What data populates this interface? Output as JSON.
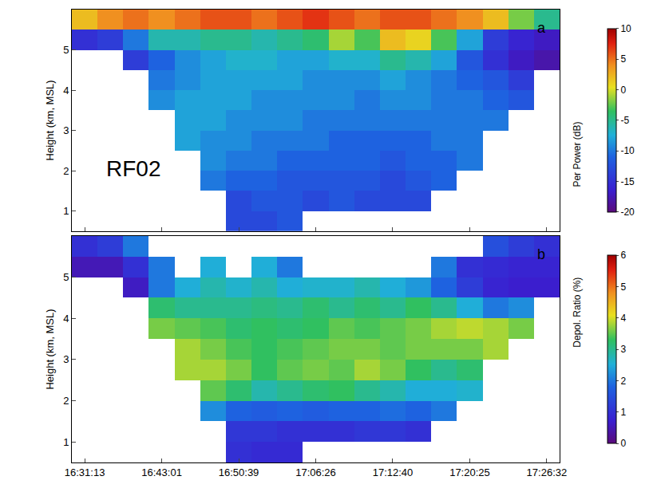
{
  "chart_data": [
    {
      "type": "heatmap",
      "label": "a",
      "annotation": "RF02",
      "tick_labels": "y",
      "categories": [
        "16:31:13",
        null,
        null,
        "16:43:01",
        null,
        null,
        "16:50:39",
        null,
        null,
        "17:06:26",
        null,
        null,
        "17:12:40",
        null,
        null,
        "17:20:25",
        null,
        null,
        "17:26:32"
      ],
      "y": [
        0.75,
        1.25,
        1.75,
        2.25,
        2.75,
        3.25,
        3.75,
        4.25,
        4.75,
        5.25,
        5.75
      ],
      "ylabel": "Height (km, MSL)",
      "ylim": [
        0.5,
        6.0
      ],
      "yticks": [
        1,
        2,
        3,
        4,
        5
      ],
      "z": [
        [
          null,
          null,
          null,
          null,
          null,
          null,
          -13,
          -13,
          -12,
          null,
          null,
          null,
          null,
          null,
          null,
          null,
          null,
          null,
          null
        ],
        [
          null,
          null,
          null,
          null,
          null,
          null,
          -13,
          -12,
          -12,
          -13,
          -12,
          -13,
          -13,
          -13,
          null,
          null,
          null,
          null,
          null
        ],
        [
          null,
          null,
          null,
          null,
          null,
          -10,
          -11,
          -11,
          -12,
          -12,
          -12,
          -12,
          -13,
          -12,
          -11,
          null,
          null,
          null,
          null
        ],
        [
          null,
          null,
          null,
          null,
          null,
          -9,
          -10,
          -10,
          -11,
          -11,
          -11,
          -11,
          -12,
          -11,
          -11,
          -10,
          null,
          null,
          null
        ],
        [
          null,
          null,
          null,
          null,
          -8,
          -9,
          -9,
          -10,
          -10,
          -10,
          -11,
          -11,
          -11,
          -11,
          -10,
          -10,
          null,
          null,
          null
        ],
        [
          null,
          null,
          null,
          null,
          -8,
          -8,
          -9,
          -9,
          -9,
          -10,
          -10,
          -10,
          -10,
          -10,
          -10,
          -10,
          -10,
          null,
          null
        ],
        [
          null,
          null,
          null,
          -9,
          -8,
          -8,
          -8,
          -9,
          -9,
          -9,
          -9,
          -10,
          -9,
          -9,
          -10,
          -10,
          -11,
          -12,
          null
        ],
        [
          null,
          null,
          null,
          -10,
          -9,
          -8,
          -8,
          -8,
          -8,
          -9,
          -9,
          -9,
          -8,
          -9,
          -10,
          -11,
          -12,
          -14,
          null
        ],
        [
          null,
          null,
          -14,
          -11,
          -9,
          -8,
          -7,
          -7,
          -8,
          -8,
          -7,
          -7,
          -5,
          -6,
          -8,
          -12,
          -15,
          -17,
          -18
        ],
        [
          -15,
          -14,
          -10,
          -6,
          -6,
          -5,
          -5,
          -6,
          -5,
          -4,
          -1,
          -3,
          2,
          1,
          -3,
          -8,
          -14,
          -16,
          -17
        ],
        [
          2,
          4,
          5,
          4,
          5,
          6,
          6,
          5,
          6,
          7,
          6,
          5,
          6,
          6,
          5,
          4,
          2,
          -2,
          -5
        ]
      ],
      "colorbar": {
        "title": "Per Power (dB)",
        "range": [
          -20,
          10
        ],
        "ticks": [
          -20,
          -15,
          -10,
          -5,
          0,
          5,
          10
        ]
      }
    },
    {
      "type": "heatmap",
      "label": "b",
      "categories": [
        "16:31:13",
        null,
        null,
        "16:43:01",
        null,
        null,
        "16:50:39",
        null,
        null,
        "17:06:26",
        null,
        null,
        "17:12:40",
        null,
        null,
        "17:20:25",
        null,
        null,
        "17:26:32"
      ],
      "y": [
        0.75,
        1.25,
        1.75,
        2.25,
        2.75,
        3.25,
        3.75,
        4.25,
        4.75,
        5.25,
        5.75
      ],
      "ylabel": "Height (km, MSL)",
      "ylim": [
        0.5,
        6.0
      ],
      "yticks": [
        1,
        2,
        3,
        4,
        5
      ],
      "z": [
        [
          null,
          null,
          null,
          null,
          null,
          null,
          1.0,
          0.9,
          0.9,
          null,
          null,
          null,
          null,
          null,
          null,
          null,
          null,
          null,
          null
        ],
        [
          null,
          null,
          null,
          null,
          null,
          null,
          1.1,
          1.1,
          1.0,
          1.0,
          1.0,
          1.1,
          1.1,
          1.0,
          null,
          null,
          null,
          null,
          null
        ],
        [
          null,
          null,
          null,
          null,
          null,
          2.2,
          1.8,
          1.7,
          1.8,
          1.7,
          1.8,
          1.8,
          1.9,
          1.8,
          2.0,
          null,
          null,
          null,
          null
        ],
        [
          null,
          null,
          null,
          null,
          null,
          3.5,
          3.2,
          2.8,
          3.0,
          3.2,
          3.3,
          3.0,
          2.8,
          2.5,
          2.5,
          2.6,
          null,
          null,
          null
        ],
        [
          null,
          null,
          null,
          null,
          3.8,
          3.8,
          3.6,
          3.3,
          3.5,
          3.6,
          3.5,
          3.8,
          3.6,
          3.3,
          3.0,
          3.2,
          null,
          null,
          null
        ],
        [
          null,
          null,
          null,
          null,
          3.8,
          3.6,
          3.4,
          3.3,
          3.4,
          3.5,
          3.6,
          3.6,
          3.5,
          3.6,
          3.6,
          3.6,
          3.8,
          null,
          null
        ],
        [
          null,
          null,
          null,
          3.6,
          3.5,
          3.4,
          3.2,
          3.3,
          3.2,
          3.3,
          3.5,
          3.4,
          3.5,
          3.6,
          3.8,
          3.9,
          3.8,
          3.6,
          null
        ],
        [
          null,
          null,
          null,
          3.2,
          3.0,
          3.0,
          3.0,
          3.1,
          3.0,
          3.2,
          3.0,
          3.2,
          3.0,
          3.3,
          3.0,
          2.5,
          2.0,
          2.2,
          null
        ],
        [
          null,
          null,
          0.6,
          2.0,
          2.5,
          2.8,
          2.6,
          2.8,
          2.5,
          2.6,
          2.6,
          2.8,
          2.5,
          2.3,
          1.8,
          1.2,
          0.8,
          0.7,
          0.7
        ],
        [
          0.5,
          0.5,
          1.0,
          2.0,
          null,
          2.5,
          null,
          2.5,
          2.0,
          null,
          null,
          null,
          null,
          null,
          2.0,
          1.0,
          0.9,
          0.8,
          0.8
        ],
        [
          1.0,
          1.2,
          2.0,
          null,
          null,
          null,
          null,
          null,
          null,
          null,
          null,
          null,
          null,
          null,
          null,
          null,
          1.5,
          1.2,
          1.0
        ]
      ],
      "colorbar": {
        "title": "Depol. Ratio (%)",
        "range": [
          0,
          6
        ],
        "ticks": [
          0,
          1,
          2,
          3,
          4,
          5,
          6
        ]
      }
    }
  ]
}
